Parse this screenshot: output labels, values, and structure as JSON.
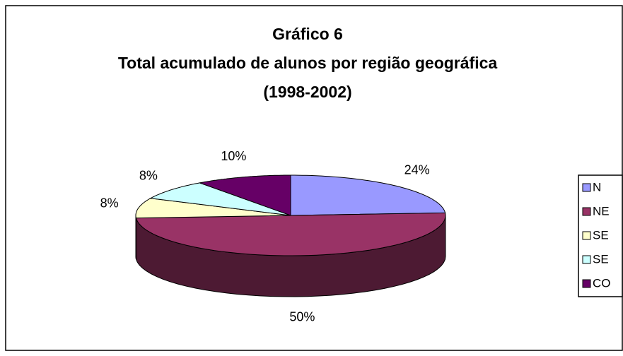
{
  "chart_data": {
    "type": "pie3d",
    "title": [
      "Gráfico 6",
      "Total acumulado de alunos por região geográfica",
      "(1998-2002)"
    ],
    "categories": [
      "N",
      "NE",
      "SE",
      "SE",
      "CO"
    ],
    "values": [
      24,
      50,
      8,
      8,
      10
    ],
    "value_labels": [
      "24%",
      "50%",
      "8%",
      "8%",
      "10%"
    ],
    "colors": [
      "#9999ff",
      "#993366",
      "#ffffcc",
      "#ccffff",
      "#660066"
    ],
    "legend": "right"
  }
}
